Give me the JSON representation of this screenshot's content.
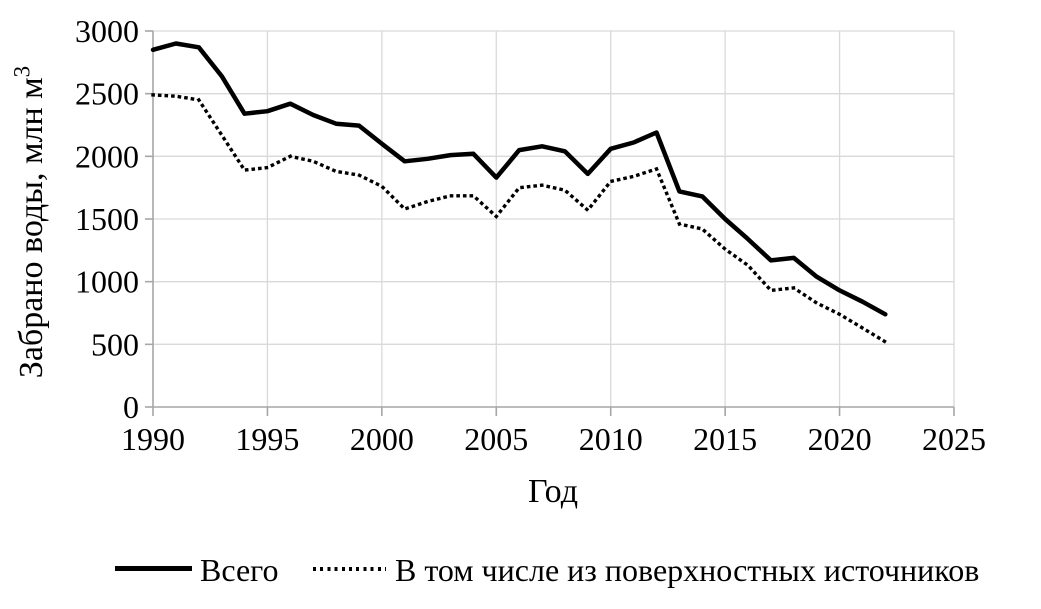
{
  "chart": {
    "y_axis_title_main": "Забрано воды, млн м",
    "y_axis_title_sup": "3",
    "x_axis_title": "Год"
  },
  "chart_data": {
    "type": "line",
    "title": "",
    "xlabel": "Год",
    "ylabel": "Забрано воды, млн м³",
    "x": [
      1990,
      1991,
      1992,
      1993,
      1994,
      1995,
      1996,
      1997,
      1998,
      1999,
      2000,
      2001,
      2002,
      2003,
      2004,
      2005,
      2006,
      2007,
      2008,
      2009,
      2010,
      2011,
      2012,
      2013,
      2014,
      2015,
      2016,
      2017,
      2018,
      2019,
      2020,
      2021,
      2022
    ],
    "series": [
      {
        "name": "Всего",
        "style": "solid",
        "values": [
          2850,
          2900,
          2870,
          2640,
          2340,
          2360,
          2420,
          2330,
          2260,
          2245,
          2100,
          1960,
          1980,
          2010,
          2020,
          1830,
          2050,
          2080,
          2040,
          1860,
          2060,
          2110,
          2190,
          1720,
          1680,
          1500,
          1340,
          1170,
          1190,
          1040,
          930,
          840,
          740
        ]
      },
      {
        "name": "В том числе из поверхностных источников",
        "style": "dotted",
        "values": [
          2490,
          2480,
          2450,
          2170,
          1890,
          1910,
          2000,
          1960,
          1880,
          1850,
          1760,
          1580,
          1640,
          1685,
          1685,
          1520,
          1750,
          1770,
          1730,
          1570,
          1800,
          1840,
          1900,
          1460,
          1420,
          1260,
          1130,
          930,
          950,
          830,
          740,
          630,
          520
        ]
      }
    ],
    "xlim": [
      1990,
      2025
    ],
    "ylim": [
      0,
      3000
    ],
    "x_ticks": [
      1990,
      1995,
      2000,
      2005,
      2010,
      2015,
      2020,
      2025
    ],
    "y_ticks": [
      0,
      500,
      1000,
      1500,
      2000,
      2500,
      3000
    ],
    "grid": true,
    "legend_position": "bottom",
    "colors": {
      "series_line": "#000000",
      "gridline": "#d9d9d9",
      "axis": "#a6a6a6",
      "text": "#000000"
    }
  }
}
